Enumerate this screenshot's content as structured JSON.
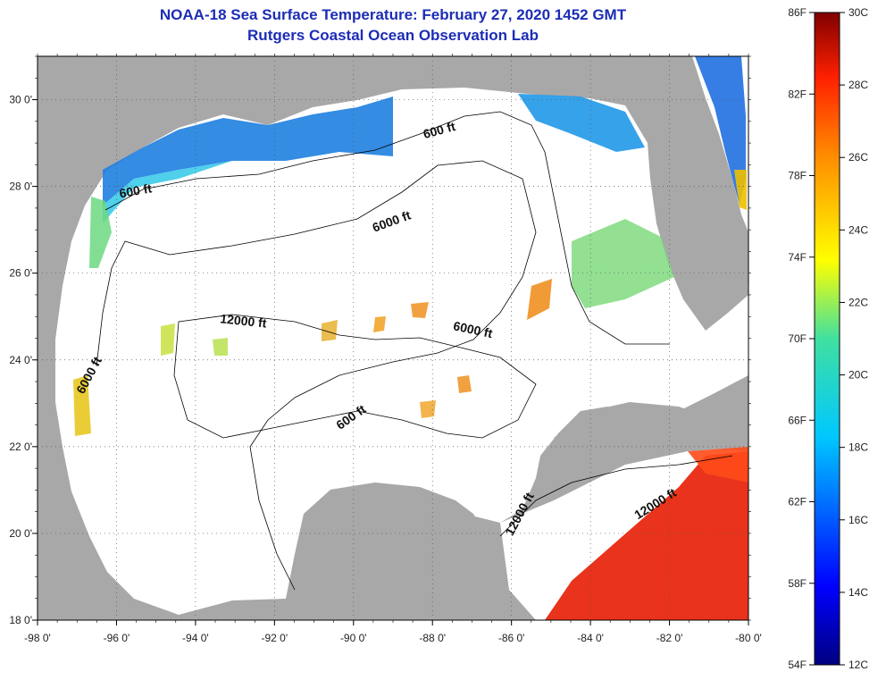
{
  "title": "NOAA-18 Sea Surface Temperature:  February 27, 2020 1452 GMT",
  "subtitle": "Rutgers Coastal Ocean Observation Lab",
  "map": {
    "lon_range": [
      -98,
      -80
    ],
    "lat_range": [
      18,
      31
    ],
    "lon_ticks": [
      {
        "value": -98,
        "label": "-98 0'"
      },
      {
        "value": -96,
        "label": "-96 0'"
      },
      {
        "value": -94,
        "label": "-94 0'"
      },
      {
        "value": -92,
        "label": "-92 0'"
      },
      {
        "value": -90,
        "label": "-90 0'"
      },
      {
        "value": -88,
        "label": "-88 0'"
      },
      {
        "value": -86,
        "label": "-86 0'"
      },
      {
        "value": -84,
        "label": "-84 0'"
      },
      {
        "value": -82,
        "label": "-82 0'"
      },
      {
        "value": -80,
        "label": "-80 0'"
      }
    ],
    "lat_ticks": [
      {
        "value": 18,
        "label": "18 0'"
      },
      {
        "value": 20,
        "label": "20 0'"
      },
      {
        "value": 22,
        "label": "22 0'"
      },
      {
        "value": 24,
        "label": "24 0'"
      },
      {
        "value": 26,
        "label": "26 0'"
      },
      {
        "value": 28,
        "label": "28 0'"
      },
      {
        "value": 30,
        "label": "30 0'"
      }
    ],
    "contour_labels": [
      {
        "text": "600 ft",
        "lon": -87.8,
        "lat": 29.2,
        "rotate": -15
      },
      {
        "text": "600 ft",
        "lon": -95.5,
        "lat": 27.8,
        "rotate": -10
      },
      {
        "text": "6000 ft",
        "lon": -89.0,
        "lat": 27.1,
        "rotate": -20
      },
      {
        "text": "12000 ft",
        "lon": -92.8,
        "lat": 24.8,
        "rotate": 6
      },
      {
        "text": "6000 ft",
        "lon": -87.0,
        "lat": 24.6,
        "rotate": 12
      },
      {
        "text": "6000 ft",
        "lon": -96.6,
        "lat": 23.6,
        "rotate": -62
      },
      {
        "text": "600 ft",
        "lon": -90.0,
        "lat": 22.6,
        "rotate": -35
      },
      {
        "text": "12000 ft",
        "lon": -85.7,
        "lat": 20.4,
        "rotate": -62
      },
      {
        "text": "12000 ft",
        "lon": -82.3,
        "lat": 20.6,
        "rotate": -32
      }
    ],
    "colors": {
      "land": "#a8a8a8",
      "ocean_nodata": "#ffffff"
    }
  },
  "colorbar": {
    "min_f": 54,
    "max_f": 86,
    "min_c": 12,
    "max_c": 30,
    "f_labels": [
      "54F",
      "58F",
      "62F",
      "66F",
      "70F",
      "74F",
      "78F",
      "82F",
      "86F"
    ],
    "c_labels": [
      "12C",
      "14C",
      "16C",
      "18C",
      "20C",
      "22C",
      "24C",
      "26C",
      "28C",
      "30C"
    ]
  }
}
